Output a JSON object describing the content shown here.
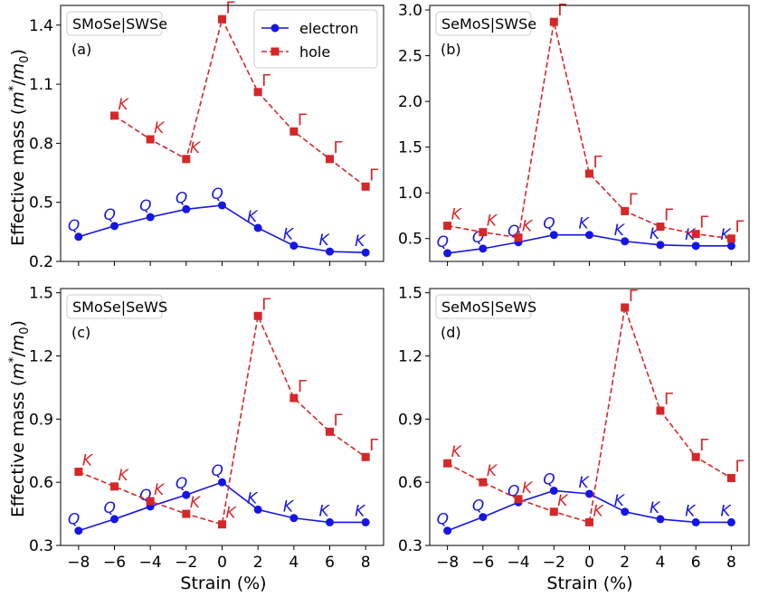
{
  "figure": {
    "xlabel": "Strain (%)",
    "ylabel_main": "Effective mass (",
    "ylabel_m": "m",
    "ylabel_star": "*",
    "ylabel_slash": "/",
    "ylabel_m0": "m",
    "ylabel_zero": "0",
    "ylabel_close": ")",
    "legend": {
      "electron": "electron",
      "hole": "hole"
    },
    "colors": {
      "electron": "#1515e6",
      "hole": "#d62728"
    }
  },
  "chart_data": [
    {
      "type": "line",
      "title": "SMoSe|SWSe",
      "panel_label": "(a)",
      "ylim": [
        0.2,
        1.5
      ],
      "yticks": [
        "0.2",
        "0.5",
        "0.8",
        "1.1",
        "1.4"
      ],
      "xlim": [
        -9,
        9
      ],
      "xticks": [
        "−8",
        "−6",
        "−4",
        "−2",
        "0",
        "2",
        "4",
        "6",
        "8"
      ],
      "show_legend": true,
      "series": [
        {
          "name": "electron",
          "x": [
            -8,
            -6,
            -4,
            -2,
            0,
            2,
            4,
            6,
            8
          ],
          "values": [
            0.325,
            0.38,
            0.425,
            0.465,
            0.485,
            0.37,
            0.28,
            0.25,
            0.245
          ],
          "labels": [
            "Q",
            "Q",
            "Q",
            "Q",
            "Q",
            "K",
            "K",
            "K",
            "K"
          ]
        },
        {
          "name": "hole",
          "x": [
            -6,
            -4,
            -2,
            0,
            2,
            4,
            6,
            8
          ],
          "values": [
            0.94,
            0.82,
            0.72,
            1.43,
            1.06,
            0.86,
            0.72,
            0.58
          ],
          "labels": [
            "K",
            "K",
            "K",
            "Γ",
            "Γ",
            "Γ",
            "Γ",
            "Γ"
          ]
        }
      ]
    },
    {
      "type": "line",
      "title": "SeMoS|SWSe",
      "panel_label": "(b)",
      "ylim": [
        0.25,
        3.05
      ],
      "yticks": [
        "0.5",
        "1.0",
        "1.5",
        "2.0",
        "2.5",
        "3.0"
      ],
      "xlim": [
        -9,
        9
      ],
      "xticks": [
        "−8",
        "−6",
        "−4",
        "−2",
        "0",
        "2",
        "4",
        "6",
        "8"
      ],
      "show_legend": false,
      "series": [
        {
          "name": "electron",
          "x": [
            -8,
            -6,
            -4,
            -2,
            0,
            2,
            4,
            6,
            8
          ],
          "values": [
            0.34,
            0.39,
            0.46,
            0.54,
            0.54,
            0.47,
            0.43,
            0.42,
            0.42
          ],
          "labels": [
            "Q",
            "Q",
            "Q",
            "Q",
            "K",
            "K",
            "K",
            "K",
            "K"
          ]
        },
        {
          "name": "hole",
          "x": [
            -8,
            -6,
            -4,
            -2,
            0,
            2,
            4,
            6,
            8
          ],
          "values": [
            0.64,
            0.57,
            0.51,
            2.87,
            1.21,
            0.8,
            0.63,
            0.55,
            0.5
          ],
          "labels": [
            "K",
            "K",
            "K",
            "Γ",
            "Γ",
            "Γ",
            "Γ",
            "Γ",
            "Γ"
          ]
        }
      ]
    },
    {
      "type": "line",
      "title": "SMoSe|SeWS",
      "panel_label": "(c)",
      "ylim": [
        0.3,
        1.52
      ],
      "yticks": [
        "0.3",
        "0.6",
        "0.9",
        "1.2",
        "1.5"
      ],
      "xlim": [
        -9,
        9
      ],
      "xticks": [
        "−8",
        "−6",
        "−4",
        "−2",
        "0",
        "2",
        "4",
        "6",
        "8"
      ],
      "show_legend": false,
      "series": [
        {
          "name": "electron",
          "x": [
            -8,
            -6,
            -4,
            -2,
            0,
            2,
            4,
            6,
            8
          ],
          "values": [
            0.37,
            0.425,
            0.485,
            0.54,
            0.6,
            0.47,
            0.43,
            0.41,
            0.41
          ],
          "labels": [
            "Q",
            "Q",
            "Q",
            "Q",
            "Q",
            "K",
            "K",
            "K",
            "K"
          ]
        },
        {
          "name": "hole",
          "x": [
            -8,
            -6,
            -4,
            -2,
            0,
            2,
            4,
            6,
            8
          ],
          "values": [
            0.65,
            0.58,
            0.51,
            0.45,
            0.4,
            1.39,
            1.0,
            0.84,
            0.72
          ],
          "labels": [
            "K",
            "K",
            "K",
            "K",
            "K",
            "Γ",
            "Γ",
            "Γ",
            "Γ"
          ]
        }
      ]
    },
    {
      "type": "line",
      "title": "SeMoS|SeWS",
      "panel_label": "(d)",
      "ylim": [
        0.3,
        1.52
      ],
      "yticks": [
        "0.3",
        "0.6",
        "0.9",
        "1.2",
        "1.5"
      ],
      "xlim": [
        -9,
        9
      ],
      "xticks": [
        "−8",
        "−6",
        "−4",
        "−2",
        "0",
        "2",
        "4",
        "6",
        "8"
      ],
      "show_legend": false,
      "series": [
        {
          "name": "electron",
          "x": [
            -8,
            -6,
            -4,
            -2,
            0,
            2,
            4,
            6,
            8
          ],
          "values": [
            0.37,
            0.435,
            0.505,
            0.56,
            0.545,
            0.46,
            0.425,
            0.41,
            0.41
          ],
          "labels": [
            "Q",
            "Q",
            "Q",
            "Q",
            "K",
            "K",
            "K",
            "K",
            "K"
          ]
        },
        {
          "name": "hole",
          "x": [
            -8,
            -6,
            -4,
            -2,
            0,
            2,
            4,
            6,
            8
          ],
          "values": [
            0.69,
            0.6,
            0.52,
            0.46,
            0.41,
            1.43,
            0.94,
            0.72,
            0.62
          ],
          "labels": [
            "K",
            "K",
            "K",
            "K",
            "K",
            "Γ",
            "Γ",
            "Γ",
            "Γ"
          ]
        }
      ]
    }
  ]
}
